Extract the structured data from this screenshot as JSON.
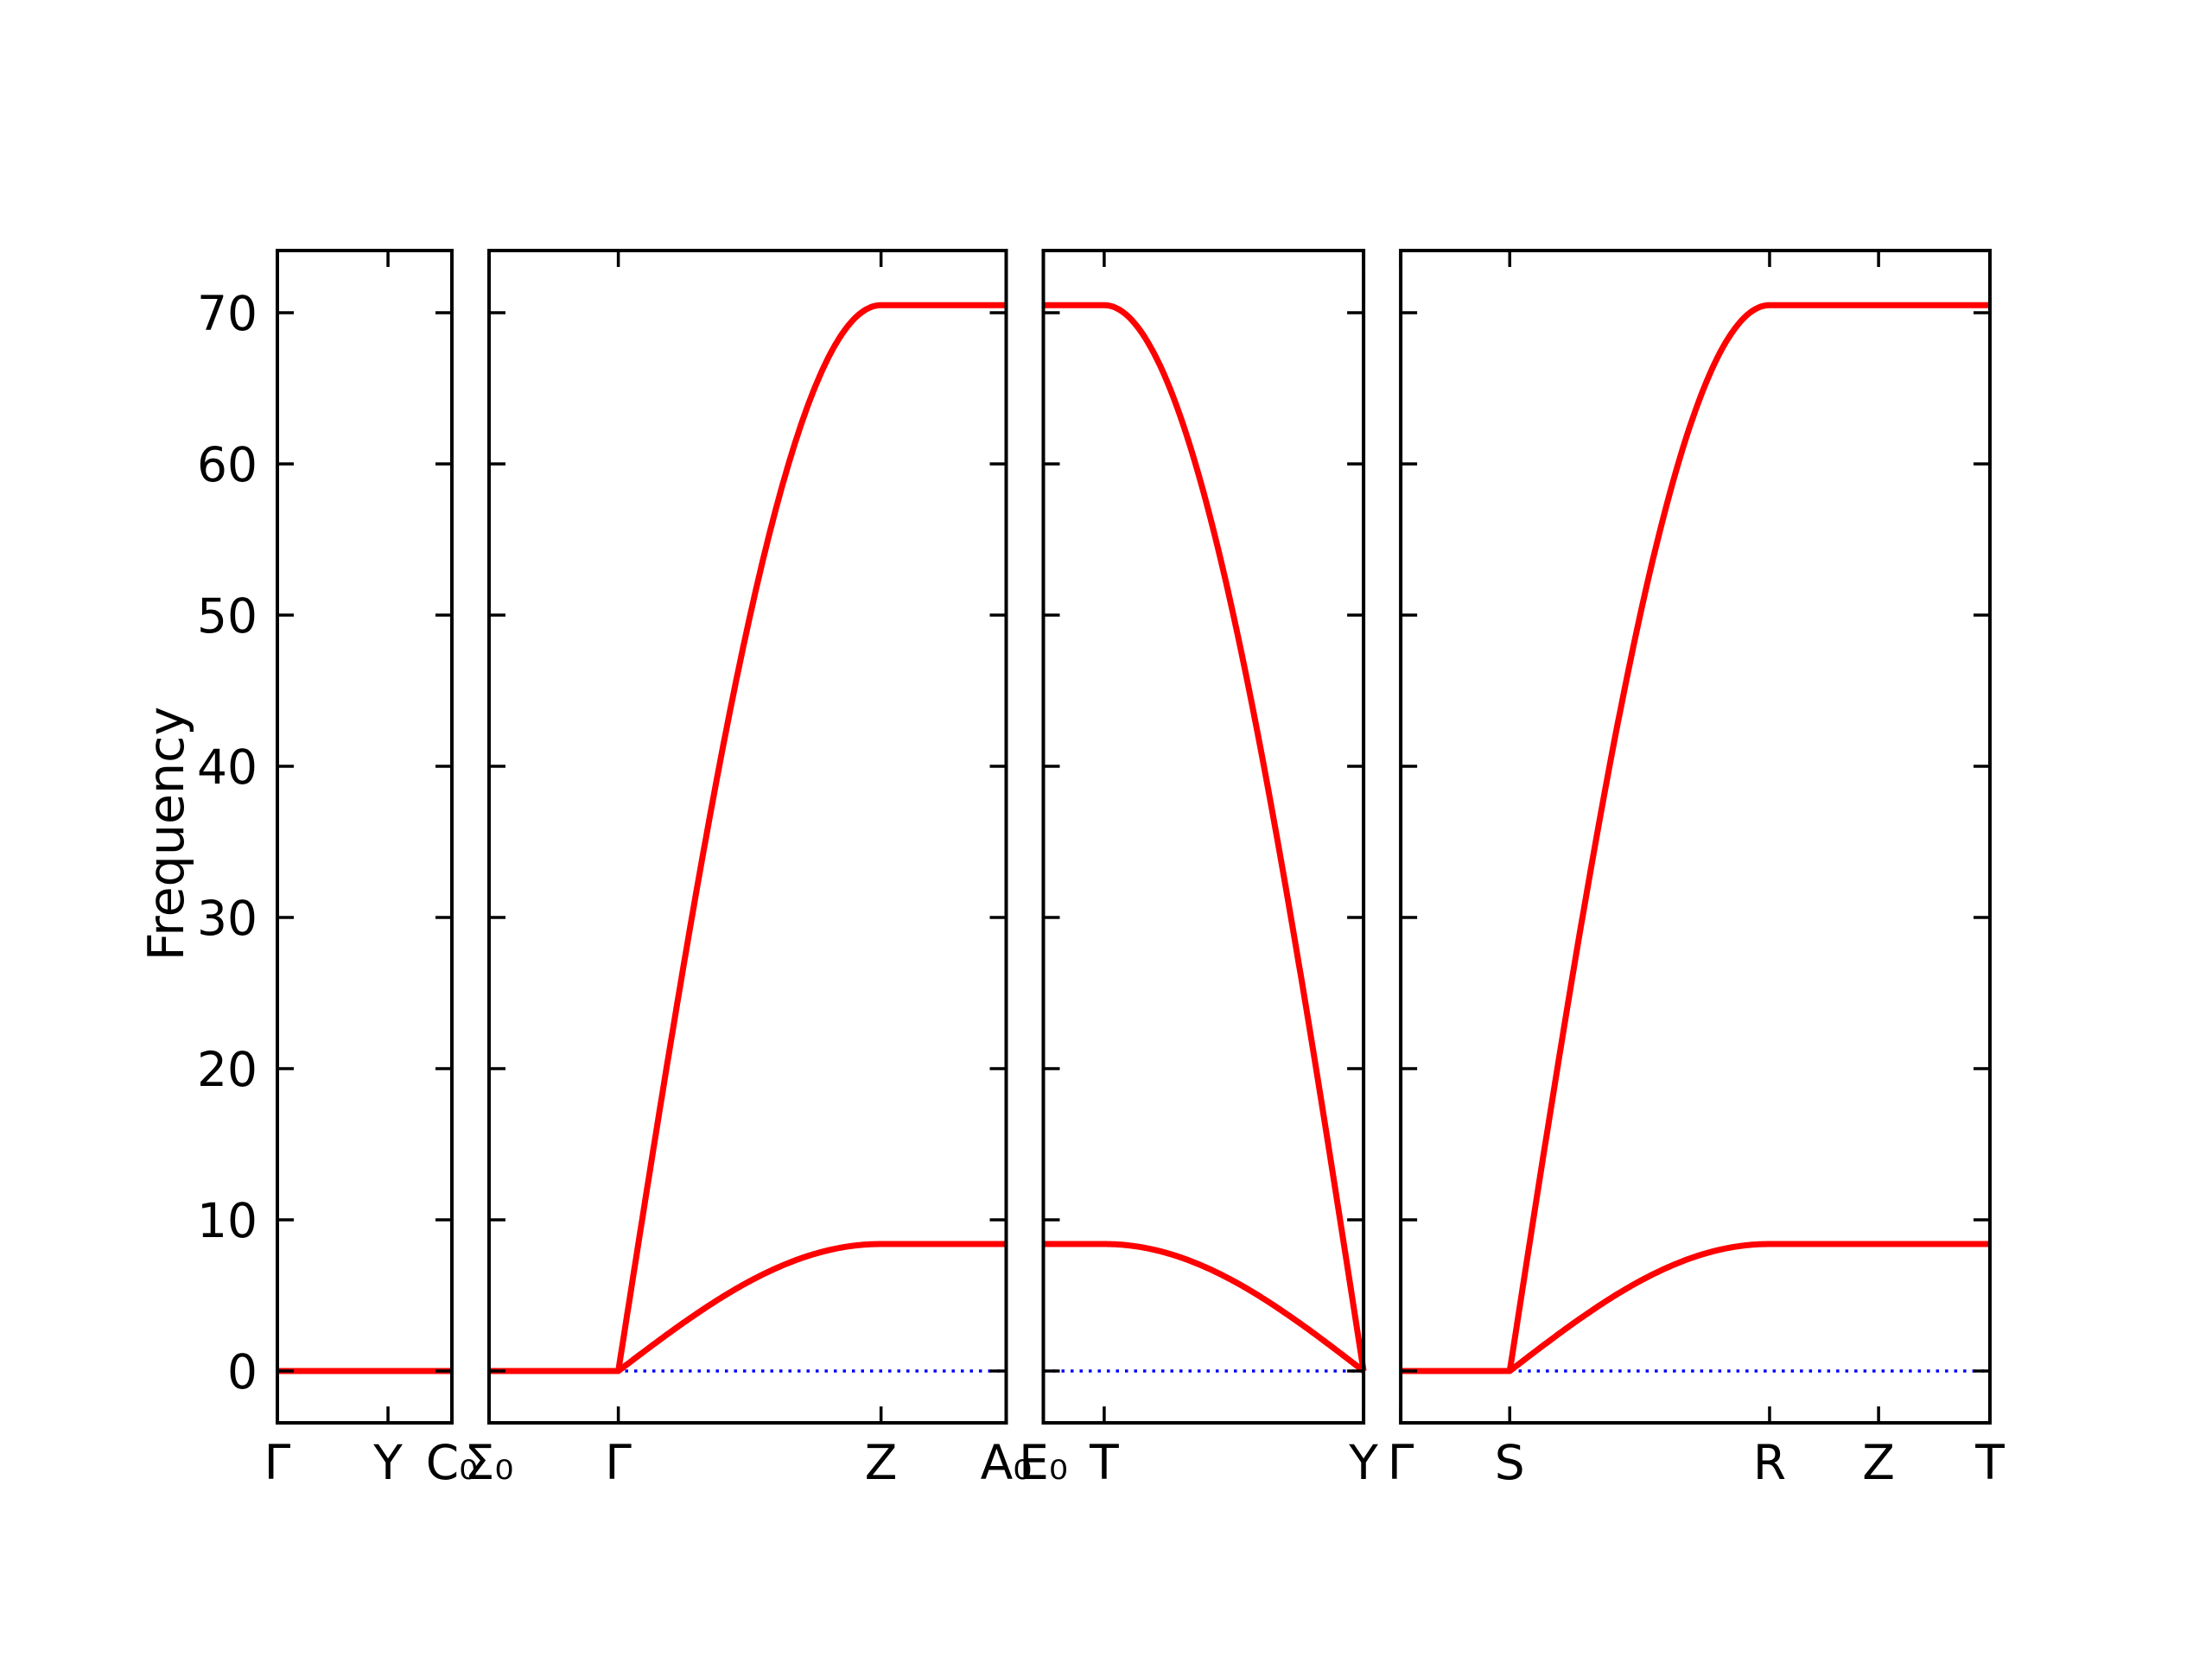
{
  "chart_data": {
    "type": "line",
    "title": "",
    "ylabel": "Frequency",
    "xlabel": "",
    "ylim": [
      -3.5,
      74.1
    ],
    "yticks": [
      0,
      10,
      20,
      30,
      40,
      50,
      60,
      70
    ],
    "grid": false,
    "legend": "none",
    "line_color": "#ff0000",
    "zero_line_color": "#0000ff",
    "axis_color": "#000000",
    "band_maxima": {
      "optical": 70.5,
      "acoustic": 8.4
    },
    "zero_reference": 0,
    "kpath_labels": [
      "Γ",
      "Y",
      "C₀",
      "Σ₀",
      "Γ",
      "Z",
      "A₀",
      "E₀",
      "T",
      "Y",
      "Γ",
      "S",
      "R",
      "Z",
      "T"
    ],
    "panels": [
      {
        "id": "gamma-y-c0",
        "width_frac": 0.109,
        "xticks": [
          {
            "label": "Γ",
            "u": 0
          },
          {
            "label": "Y",
            "u": 0.634
          },
          {
            "label": "C₀",
            "u": 1
          }
        ],
        "zero_line": true,
        "bands": [
          {
            "name": "degenerate-zero",
            "segments": [
              {
                "shape": "flat",
                "u0": 0,
                "u1": 1,
                "v": 0
              }
            ]
          }
        ]
      },
      {
        "id": "sigma0-gamma-z-a0",
        "width_frac": 0.323,
        "xticks": [
          {
            "label": "Σ₀",
            "u": 0
          },
          {
            "label": "Γ",
            "u": 0.25
          },
          {
            "label": "Z",
            "u": 0.758
          },
          {
            "label": "A₀",
            "u": 1
          }
        ],
        "zero_line": true,
        "bands": [
          {
            "name": "optical",
            "segments": [
              {
                "shape": "flat",
                "u0": 0,
                "u1": 0.25,
                "v": 0
              },
              {
                "shape": "sin-rise",
                "u0": 0.25,
                "u1": 0.758,
                "v0": 0,
                "v1": 70.5
              },
              {
                "shape": "flat",
                "u0": 0.758,
                "u1": 1,
                "v": 70.5
              }
            ]
          },
          {
            "name": "acoustic",
            "segments": [
              {
                "shape": "flat",
                "u0": 0,
                "u1": 0.25,
                "v": 0
              },
              {
                "shape": "sin-rise",
                "u0": 0.25,
                "u1": 0.758,
                "v0": 0,
                "v1": 8.4
              },
              {
                "shape": "flat",
                "u0": 0.758,
                "u1": 1,
                "v": 8.4
              }
            ]
          }
        ]
      },
      {
        "id": "e0-t-y",
        "width_frac": 0.2,
        "xticks": [
          {
            "label": "E₀",
            "u": 0
          },
          {
            "label": "T",
            "u": 0.19
          },
          {
            "label": "Y",
            "u": 1
          }
        ],
        "zero_line": true,
        "bands": [
          {
            "name": "optical",
            "segments": [
              {
                "shape": "flat",
                "u0": 0,
                "u1": 0.19,
                "v": 70.5
              },
              {
                "shape": "cos-fall",
                "u0": 0.19,
                "u1": 1,
                "v0": 70.5,
                "v1": 0
              }
            ]
          },
          {
            "name": "acoustic",
            "segments": [
              {
                "shape": "flat",
                "u0": 0,
                "u1": 0.19,
                "v": 8.4
              },
              {
                "shape": "cos-fall",
                "u0": 0.19,
                "u1": 1,
                "v0": 8.4,
                "v1": 0
              }
            ]
          }
        ]
      },
      {
        "id": "gamma-s-r-z-t",
        "width_frac": 0.368,
        "xticks": [
          {
            "label": "Γ",
            "u": 0
          },
          {
            "label": "S",
            "u": 0.185
          },
          {
            "label": "R",
            "u": 0.626
          },
          {
            "label": "Z",
            "u": 0.811
          },
          {
            "label": "T",
            "u": 1
          }
        ],
        "zero_line": true,
        "bands": [
          {
            "name": "optical",
            "segments": [
              {
                "shape": "flat",
                "u0": 0,
                "u1": 0.185,
                "v": 0
              },
              {
                "shape": "sin-rise",
                "u0": 0.185,
                "u1": 0.626,
                "v0": 0,
                "v1": 70.5
              },
              {
                "shape": "flat",
                "u0": 0.626,
                "u1": 1,
                "v": 70.5
              }
            ]
          },
          {
            "name": "acoustic",
            "segments": [
              {
                "shape": "flat",
                "u0": 0,
                "u1": 0.185,
                "v": 0
              },
              {
                "shape": "sin-rise",
                "u0": 0.185,
                "u1": 0.626,
                "v0": 0,
                "v1": 8.4
              },
              {
                "shape": "flat",
                "u0": 0.626,
                "u1": 1,
                "v": 8.4
              }
            ]
          }
        ]
      }
    ]
  }
}
